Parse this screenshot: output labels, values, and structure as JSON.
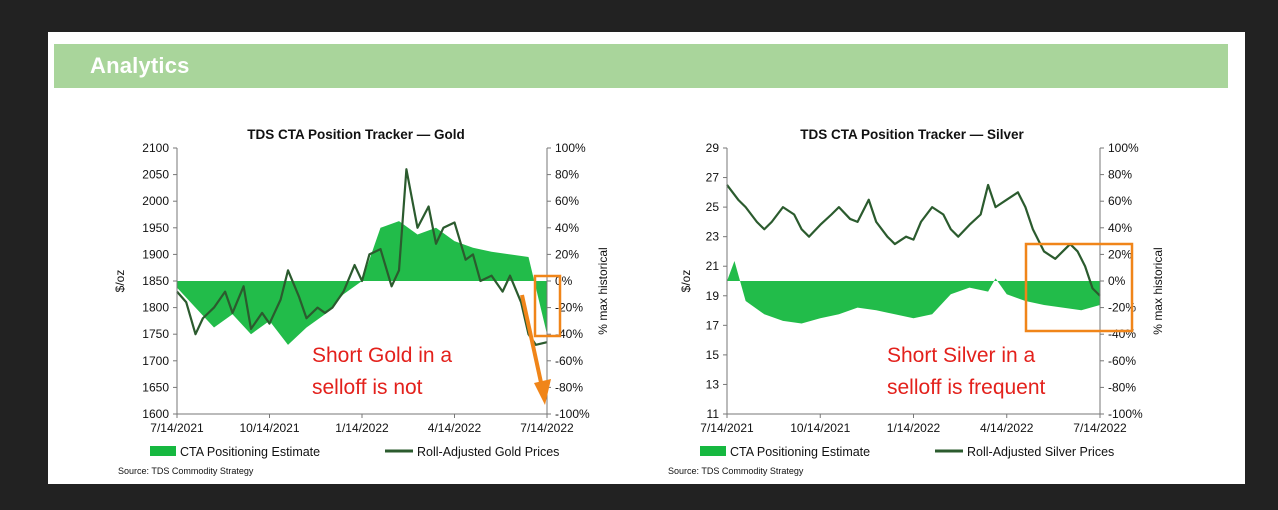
{
  "header": {
    "title": "Analytics"
  },
  "colors": {
    "header_bg": "#a9d59b",
    "cta_fill": "#16b840",
    "price_line": "#2b5b2e",
    "annotation": "#e3211c",
    "highlight": "#f08519"
  },
  "chart_data": [
    {
      "type": "area",
      "title": "TDS CTA Position Tracker — Gold",
      "ylabel": "$/oz",
      "y2label": "% max historical",
      "x_ticks": [
        "7/14/2021",
        "10/14/2021",
        "1/14/2022",
        "4/14/2022",
        "7/14/2022"
      ],
      "ylim": [
        1600,
        2100
      ],
      "y_ticks": [
        "2100",
        "2050",
        "2000",
        "1950",
        "1900",
        "1850",
        "1800",
        "1750",
        "1700",
        "1650",
        "1600"
      ],
      "y2lim": [
        -100,
        100
      ],
      "y2_ticks": [
        "100%",
        "80%",
        "60%",
        "40%",
        "20%",
        "0%",
        "-20%",
        "-40%",
        "-60%",
        "-80%",
        "-100%"
      ],
      "legend": [
        "CTA Positioning Estimate",
        "Roll-Adjusted Gold Prices"
      ],
      "source": "Source: TDS Commodity Strategy",
      "annotation": [
        "Short Gold in a",
        "selloff is not"
      ],
      "series": [
        {
          "name": "CTA Positioning Estimate",
          "axis": "right",
          "x": [
            0,
            0.05,
            0.1,
            0.15,
            0.2,
            0.25,
            0.3,
            0.35,
            0.4,
            0.45,
            0.5,
            0.55,
            0.6,
            0.65,
            0.7,
            0.75,
            0.8,
            0.85,
            0.9,
            0.95,
            1
          ],
          "values": [
            -5,
            -20,
            -35,
            -25,
            -40,
            -30,
            -48,
            -35,
            -25,
            -10,
            0,
            40,
            45,
            35,
            40,
            30,
            25,
            22,
            20,
            18,
            -40
          ]
        },
        {
          "name": "Roll-Adjusted Gold Prices",
          "axis": "left",
          "x": [
            0,
            0.025,
            0.05,
            0.07,
            0.1,
            0.13,
            0.15,
            0.18,
            0.2,
            0.23,
            0.25,
            0.28,
            0.3,
            0.33,
            0.35,
            0.38,
            0.4,
            0.42,
            0.45,
            0.48,
            0.5,
            0.52,
            0.55,
            0.58,
            0.6,
            0.62,
            0.65,
            0.68,
            0.7,
            0.72,
            0.75,
            0.78,
            0.8,
            0.82,
            0.85,
            0.88,
            0.9,
            0.93,
            0.95,
            0.97,
            1
          ],
          "values": [
            1830,
            1810,
            1750,
            1780,
            1800,
            1830,
            1790,
            1840,
            1760,
            1790,
            1770,
            1815,
            1870,
            1820,
            1780,
            1800,
            1790,
            1800,
            1830,
            1880,
            1850,
            1900,
            1910,
            1840,
            1870,
            2060,
            1950,
            1990,
            1920,
            1950,
            1960,
            1890,
            1900,
            1850,
            1860,
            1830,
            1860,
            1810,
            1750,
            1730,
            1735
          ]
        }
      ]
    },
    {
      "type": "area",
      "title": "TDS CTA Position Tracker — Silver",
      "ylabel": "$/oz",
      "y2label": "% max historical",
      "x_ticks": [
        "7/14/2021",
        "10/14/2021",
        "1/14/2022",
        "4/14/2022",
        "7/14/2022"
      ],
      "ylim": [
        11,
        29
      ],
      "y_ticks": [
        "29",
        "27",
        "25",
        "23",
        "21",
        "19",
        "17",
        "15",
        "13",
        "11"
      ],
      "y2lim": [
        -100,
        100
      ],
      "y2_ticks": [
        "100%",
        "80%",
        "60%",
        "40%",
        "20%",
        "0%",
        "-20%",
        "-40%",
        "-60%",
        "-80%",
        "-100%"
      ],
      "legend": [
        "CTA Positioning Estimate",
        "Roll-Adjusted Silver Prices"
      ],
      "source": "Source: TDS Commodity Strategy",
      "annotation": [
        "Short Silver in a",
        "selloff is frequent"
      ],
      "series": [
        {
          "name": "CTA Positioning Estimate",
          "axis": "right",
          "x": [
            0,
            0.02,
            0.05,
            0.1,
            0.15,
            0.2,
            0.25,
            0.3,
            0.35,
            0.4,
            0.45,
            0.5,
            0.55,
            0.6,
            0.65,
            0.7,
            0.72,
            0.75,
            0.8,
            0.85,
            0.9,
            0.95,
            1
          ],
          "values": [
            0,
            15,
            -15,
            -25,
            -30,
            -32,
            -28,
            -25,
            -20,
            -22,
            -25,
            -28,
            -25,
            -10,
            -5,
            -8,
            2,
            -10,
            -15,
            -18,
            -20,
            -22,
            -18
          ]
        },
        {
          "name": "Roll-Adjusted Silver Prices",
          "axis": "left",
          "x": [
            0,
            0.03,
            0.05,
            0.08,
            0.1,
            0.12,
            0.15,
            0.18,
            0.2,
            0.22,
            0.25,
            0.28,
            0.3,
            0.33,
            0.35,
            0.38,
            0.4,
            0.43,
            0.45,
            0.48,
            0.5,
            0.52,
            0.55,
            0.58,
            0.6,
            0.62,
            0.65,
            0.68,
            0.7,
            0.72,
            0.75,
            0.78,
            0.8,
            0.82,
            0.85,
            0.88,
            0.9,
            0.92,
            0.94,
            0.96,
            0.98,
            1
          ],
          "values": [
            26.5,
            25.5,
            25,
            24,
            23.5,
            24,
            25,
            24.5,
            23.5,
            23,
            23.8,
            24.5,
            25,
            24.2,
            24,
            25.5,
            24,
            23,
            22.5,
            23,
            22.8,
            24,
            25,
            24.5,
            23.5,
            23,
            23.8,
            24.5,
            26.5,
            25,
            25.5,
            26,
            25,
            23.5,
            22,
            21.5,
            22,
            22.5,
            22,
            21,
            19.5,
            19
          ]
        }
      ]
    }
  ]
}
